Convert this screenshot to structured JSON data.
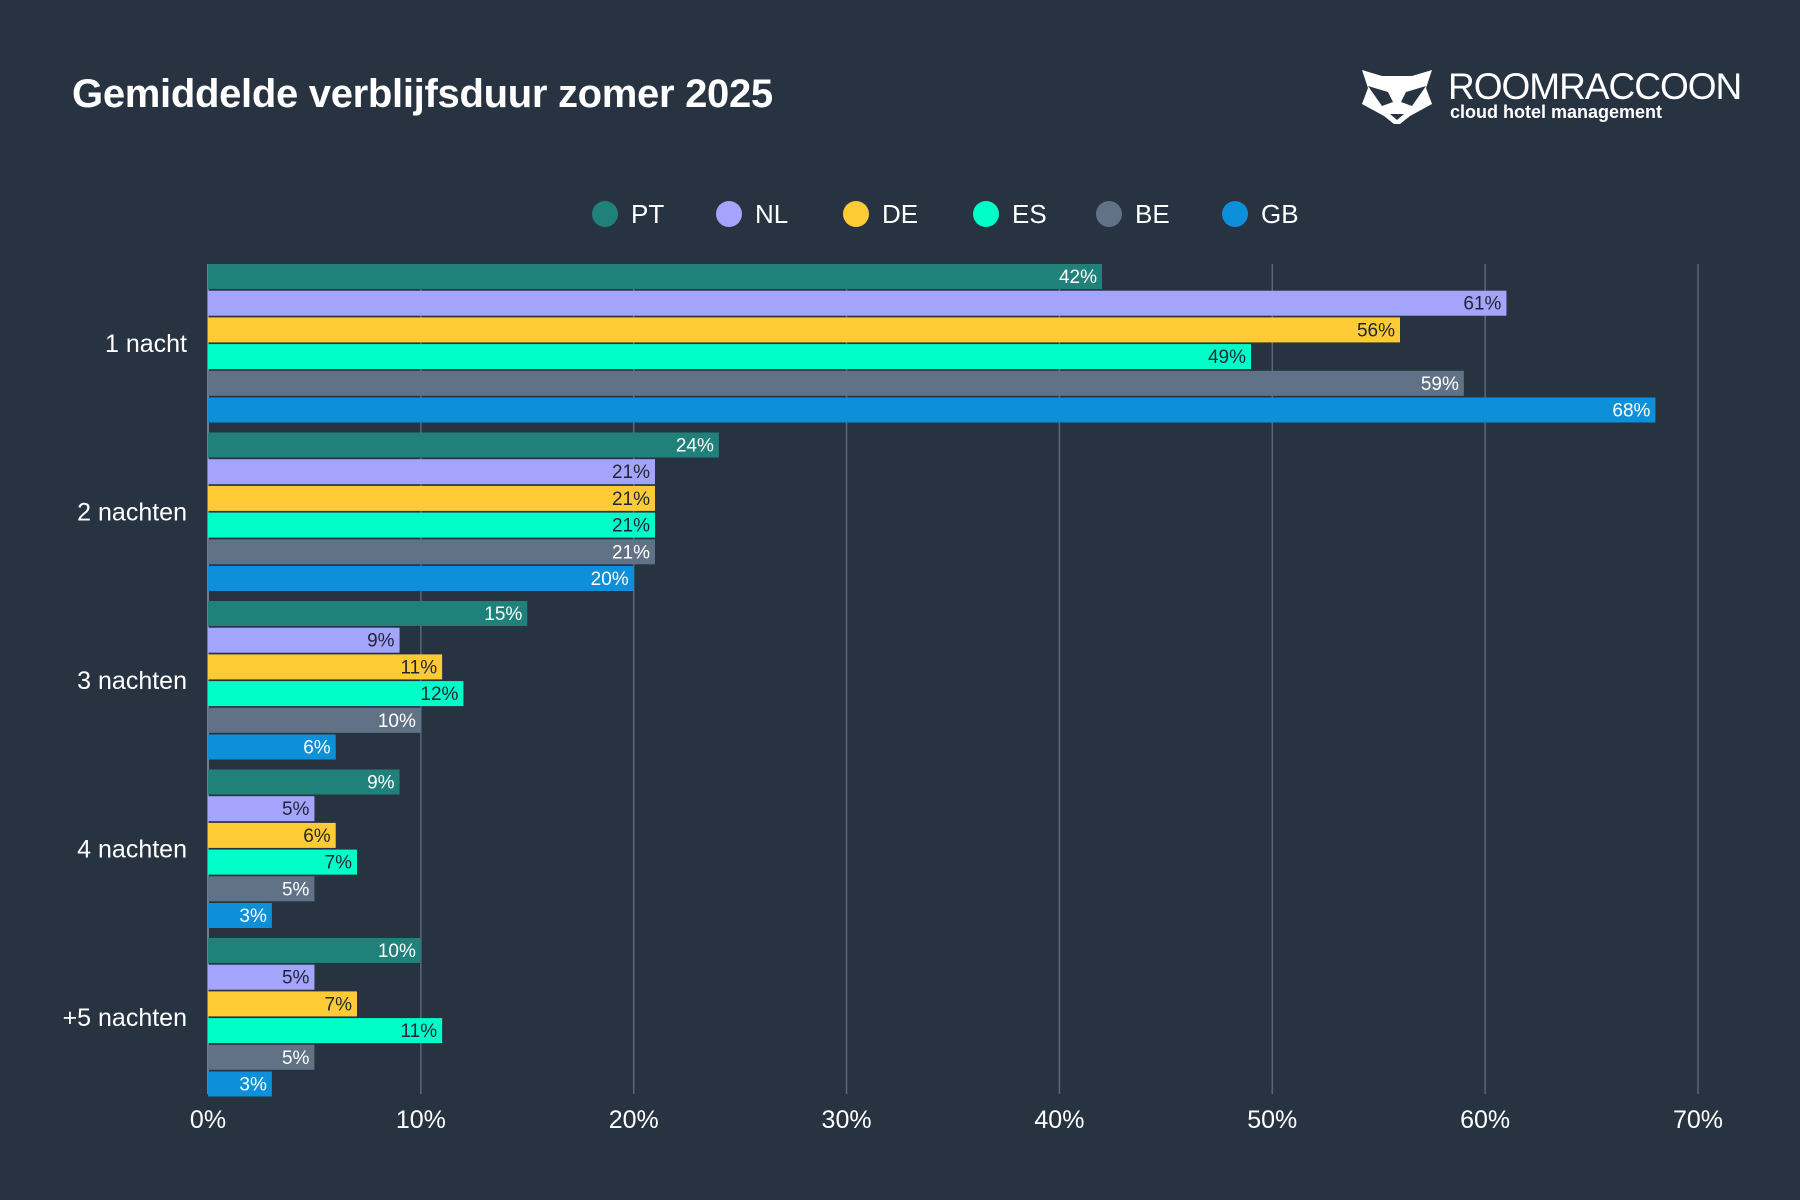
{
  "chart_data": {
    "type": "bar",
    "orientation": "horizontal",
    "title": "Gemiddelde verblijfsduur zomer 2025",
    "categories": [
      "1 nacht",
      "2 nachten",
      "3 nachten",
      "4 nachten",
      "+5 nachten"
    ],
    "series": [
      {
        "name": "PT",
        "color": "#20807a",
        "label_color": "#ffffff",
        "values": [
          42,
          24,
          15,
          9,
          10
        ]
      },
      {
        "name": "NL",
        "color": "#a5a4fd",
        "label_color": "#1e2633",
        "values": [
          61,
          21,
          9,
          5,
          5
        ]
      },
      {
        "name": "DE",
        "color": "#ffcb35",
        "label_color": "#1e2633",
        "values": [
          56,
          21,
          11,
          6,
          7
        ]
      },
      {
        "name": "ES",
        "color": "#00ffc8",
        "label_color": "#1e2633",
        "values": [
          49,
          21,
          12,
          7,
          11
        ]
      },
      {
        "name": "BE",
        "color": "#627286",
        "label_color": "#ffffff",
        "values": [
          59,
          21,
          10,
          5,
          5
        ]
      },
      {
        "name": "GB",
        "color": "#0e8fd9",
        "label_color": "#ffffff",
        "values": [
          68,
          20,
          6,
          3,
          3
        ]
      }
    ],
    "xlim": [
      0,
      70
    ],
    "x_ticks": [
      "0%",
      "10%",
      "20%",
      "30%",
      "40%",
      "50%",
      "60%",
      "70%"
    ],
    "value_suffix": "%",
    "grid": true,
    "legend_position": "top-center",
    "background": "#283342"
  },
  "logo": {
    "name": "ROOMRACCOON",
    "tagline": "cloud hotel management"
  }
}
